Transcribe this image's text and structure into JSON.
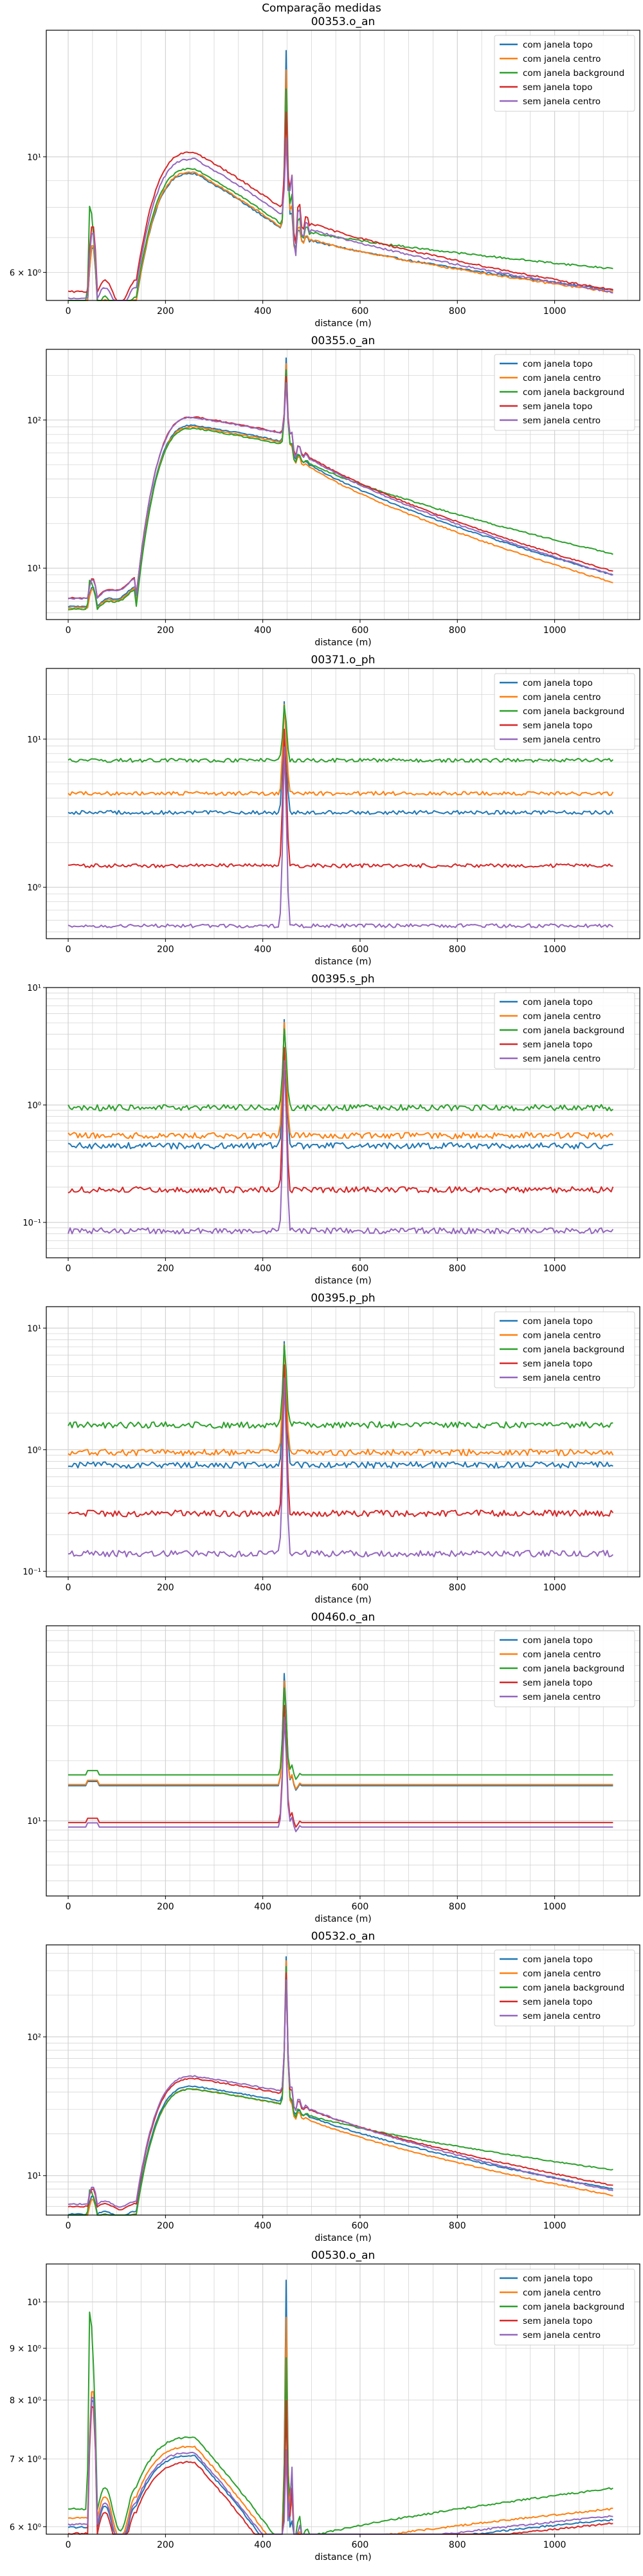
{
  "figure": {
    "suptitle": "Comparação medidas"
  },
  "legend_labels": [
    "com janela topo",
    "com janela centro",
    "com janela background",
    "sem janela topo",
    "sem janela centro"
  ],
  "series_colors": [
    "#1f77b4",
    "#ff7f0e",
    "#2ca02c",
    "#d62728",
    "#9467bd"
  ],
  "chart_data": [
    {
      "type": "line",
      "title": "00353.o_an",
      "xlabel": "distance (m)",
      "ylabel": "",
      "yscale": "log",
      "xlim": [
        -45,
        1175
      ],
      "ylim": [
        5.3,
        17.5
      ],
      "xticks": [
        0,
        200,
        400,
        600,
        800,
        1000
      ],
      "yticks": [
        {
          "value": 6,
          "label": "6 × 10⁰"
        },
        {
          "value": 10,
          "label": "10¹"
        }
      ],
      "grid": true,
      "legend_position": "top-right",
      "profile": {
        "kind": "rise",
        "base": 1.0,
        "startRatio": 0.54,
        "plateauVal": 1.0,
        "spikeMax": 16.0,
        "noise": 0.004
      },
      "series": [
        {
          "name": "com janela topo",
          "base": 9.3,
          "tail": 5.55
        },
        {
          "name": "com janela centro",
          "base": 9.35,
          "tail": 5.5
        },
        {
          "name": "com janela background",
          "base": 9.5,
          "tail": 6.1
        },
        {
          "name": "sem janela topo",
          "base": 10.2,
          "tail": 5.55
        },
        {
          "name": "sem janela centro",
          "base": 9.9,
          "tail": 5.5
        }
      ]
    },
    {
      "type": "line",
      "title": "00355.o_an",
      "xlabel": "distance (m)",
      "ylabel": "",
      "yscale": "log",
      "xlim": [
        -45,
        1175
      ],
      "ylim": [
        4.5,
        300
      ],
      "xticks": [
        0,
        200,
        400,
        600,
        800,
        1000
      ],
      "yticks": [
        {
          "value": 10,
          "label": "10¹"
        },
        {
          "value": 100,
          "label": "10²"
        }
      ],
      "grid": true,
      "legend_position": "top-right",
      "profile": {
        "kind": "rise",
        "base": 1.0,
        "startRatio": 0.06,
        "plateauVal": 0.25,
        "spikeMax": 260,
        "noise": 0.01
      },
      "series": [
        {
          "name": "com janela topo",
          "base": 92,
          "tail": 9.0
        },
        {
          "name": "com janela centro",
          "base": 90,
          "tail": 8.0
        },
        {
          "name": "com janela background",
          "base": 88,
          "tail": 12.5
        },
        {
          "name": "sem janela topo",
          "base": 105,
          "tail": 9.5
        },
        {
          "name": "sem janela centro",
          "base": 104,
          "tail": 9.0
        }
      ]
    },
    {
      "type": "line",
      "title": "00371.o_ph",
      "xlabel": "distance (m)",
      "ylabel": "",
      "yscale": "log",
      "xlim": [
        -45,
        1175
      ],
      "ylim": [
        0.45,
        30
      ],
      "xticks": [
        0,
        200,
        400,
        600,
        800,
        1000
      ],
      "yticks": [
        {
          "value": 1,
          "label": "10⁰"
        },
        {
          "value": 10,
          "label": "10¹"
        }
      ],
      "grid": true,
      "legend_position": "top-right",
      "profile": {
        "kind": "flat",
        "spikeMax": 25,
        "noise": 0.03
      },
      "series": [
        {
          "name": "com janela topo",
          "base": 3.2
        },
        {
          "name": "com janela centro",
          "base": 4.3
        },
        {
          "name": "com janela background",
          "base": 7.2
        },
        {
          "name": "sem janela topo",
          "base": 1.4
        },
        {
          "name": "sem janela centro",
          "base": 0.55
        }
      ]
    },
    {
      "type": "line",
      "title": "00395.s_ph",
      "xlabel": "distance (m)",
      "ylabel": "",
      "yscale": "log",
      "xlim": [
        -45,
        1175
      ],
      "ylim": [
        0.05,
        10
      ],
      "xticks": [
        0,
        200,
        400,
        600,
        800,
        1000
      ],
      "yticks": [
        {
          "value": 0.1,
          "label": "10⁻¹"
        },
        {
          "value": 1,
          "label": "10⁰"
        },
        {
          "value": 10,
          "label": "10¹"
        }
      ],
      "grid": true,
      "legend_position": "top-right",
      "profile": {
        "kind": "flat",
        "spikeMax": 8,
        "noise": 0.06
      },
      "series": [
        {
          "name": "com janela topo",
          "base": 0.45
        },
        {
          "name": "com janela centro",
          "base": 0.55
        },
        {
          "name": "com janela background",
          "base": 0.95
        },
        {
          "name": "sem janela topo",
          "base": 0.19
        },
        {
          "name": "sem janela centro",
          "base": 0.085
        }
      ]
    },
    {
      "type": "line",
      "title": "00395.p_ph",
      "xlabel": "distance (m)",
      "ylabel": "",
      "yscale": "log",
      "xlim": [
        -45,
        1175
      ],
      "ylim": [
        0.09,
        15
      ],
      "xticks": [
        0,
        200,
        400,
        600,
        800,
        1000
      ],
      "yticks": [
        {
          "value": 0.1,
          "label": "10⁻¹"
        },
        {
          "value": 1,
          "label": "10⁰"
        },
        {
          "value": 10,
          "label": "10¹"
        }
      ],
      "grid": true,
      "legend_position": "top-right",
      "profile": {
        "kind": "flat",
        "spikeMax": 12,
        "noise": 0.06
      },
      "series": [
        {
          "name": "com janela topo",
          "base": 0.75
        },
        {
          "name": "com janela centro",
          "base": 0.95
        },
        {
          "name": "com janela background",
          "base": 1.6
        },
        {
          "name": "sem janela topo",
          "base": 0.3
        },
        {
          "name": "sem janela centro",
          "base": 0.14
        }
      ]
    },
    {
      "type": "line",
      "title": "00460.o_an",
      "xlabel": "distance (m)",
      "ylabel": "",
      "yscale": "log",
      "xlim": [
        -45,
        1175
      ],
      "ylim": [
        4.2,
        95
      ],
      "xticks": [
        0,
        200,
        400,
        600,
        800,
        1000
      ],
      "yticks": [
        {
          "value": 10,
          "label": "10¹"
        }
      ],
      "grid": true,
      "legend_position": "top-right",
      "profile": {
        "kind": "flat",
        "spikeMax": 70,
        "noise": 0.0,
        "bump": true
      },
      "series": [
        {
          "name": "com janela topo",
          "base": 15.0
        },
        {
          "name": "com janela centro",
          "base": 15.2
        },
        {
          "name": "com janela background",
          "base": 17.0
        },
        {
          "name": "sem janela topo",
          "base": 9.8
        },
        {
          "name": "sem janela centro",
          "base": 9.3
        }
      ]
    },
    {
      "type": "line",
      "title": "00532.o_an",
      "xlabel": "distance (m)",
      "ylabel": "",
      "yscale": "log",
      "xlim": [
        -45,
        1175
      ],
      "ylim": [
        5.2,
        460
      ],
      "xticks": [
        0,
        200,
        400,
        600,
        800,
        1000
      ],
      "yticks": [
        {
          "value": 10,
          "label": "10¹"
        },
        {
          "value": 100,
          "label": "10²"
        }
      ],
      "grid": true,
      "legend_position": "top-right",
      "profile": {
        "kind": "rise",
        "base": 1.0,
        "startRatio": 0.12,
        "plateauVal": 0.22,
        "spikeMax": 380,
        "noise": 0.01
      },
      "series": [
        {
          "name": "com janela topo",
          "base": 44,
          "tail": 8.0
        },
        {
          "name": "com janela centro",
          "base": 42,
          "tail": 7.2
        },
        {
          "name": "com janela background",
          "base": 42,
          "tail": 11.0
        },
        {
          "name": "sem janela topo",
          "base": 50,
          "tail": 8.5
        },
        {
          "name": "sem janela centro",
          "base": 52,
          "tail": 7.8
        }
      ]
    },
    {
      "type": "line",
      "title": "00530.o_an",
      "xlabel": "distance (m)",
      "ylabel": "",
      "yscale": "log",
      "xlim": [
        -45,
        1175
      ],
      "ylim": [
        5.9,
        10.9
      ],
      "xticks": [
        0,
        200,
        400,
        600,
        800,
        1000
      ],
      "yticks": [
        {
          "value": 6,
          "label": "6 × 10⁰"
        },
        {
          "value": 7,
          "label": "7 × 10⁰"
        },
        {
          "value": 8,
          "label": "8 × 10⁰"
        },
        {
          "value": 9,
          "label": "9 × 10⁰"
        },
        {
          "value": 10,
          "label": "10¹"
        }
      ],
      "grid": true,
      "legend_position": "top-right",
      "profile": {
        "kind": "rise",
        "base": 1.0,
        "startRatio": 0.85,
        "plateauVal": 1.0,
        "spikeMax": 10.5,
        "noise": 0.002
      },
      "series": [
        {
          "name": "com janela topo",
          "base": 7.05,
          "tail": 6.1
        },
        {
          "name": "com janela centro",
          "base": 7.2,
          "tail": 6.25
        },
        {
          "name": "com janela background",
          "base": 7.35,
          "tail": 6.55
        },
        {
          "name": "sem janela topo",
          "base": 6.95,
          "tail": 6.05
        },
        {
          "name": "sem janela centro",
          "base": 7.1,
          "tail": 6.15
        }
      ]
    }
  ]
}
